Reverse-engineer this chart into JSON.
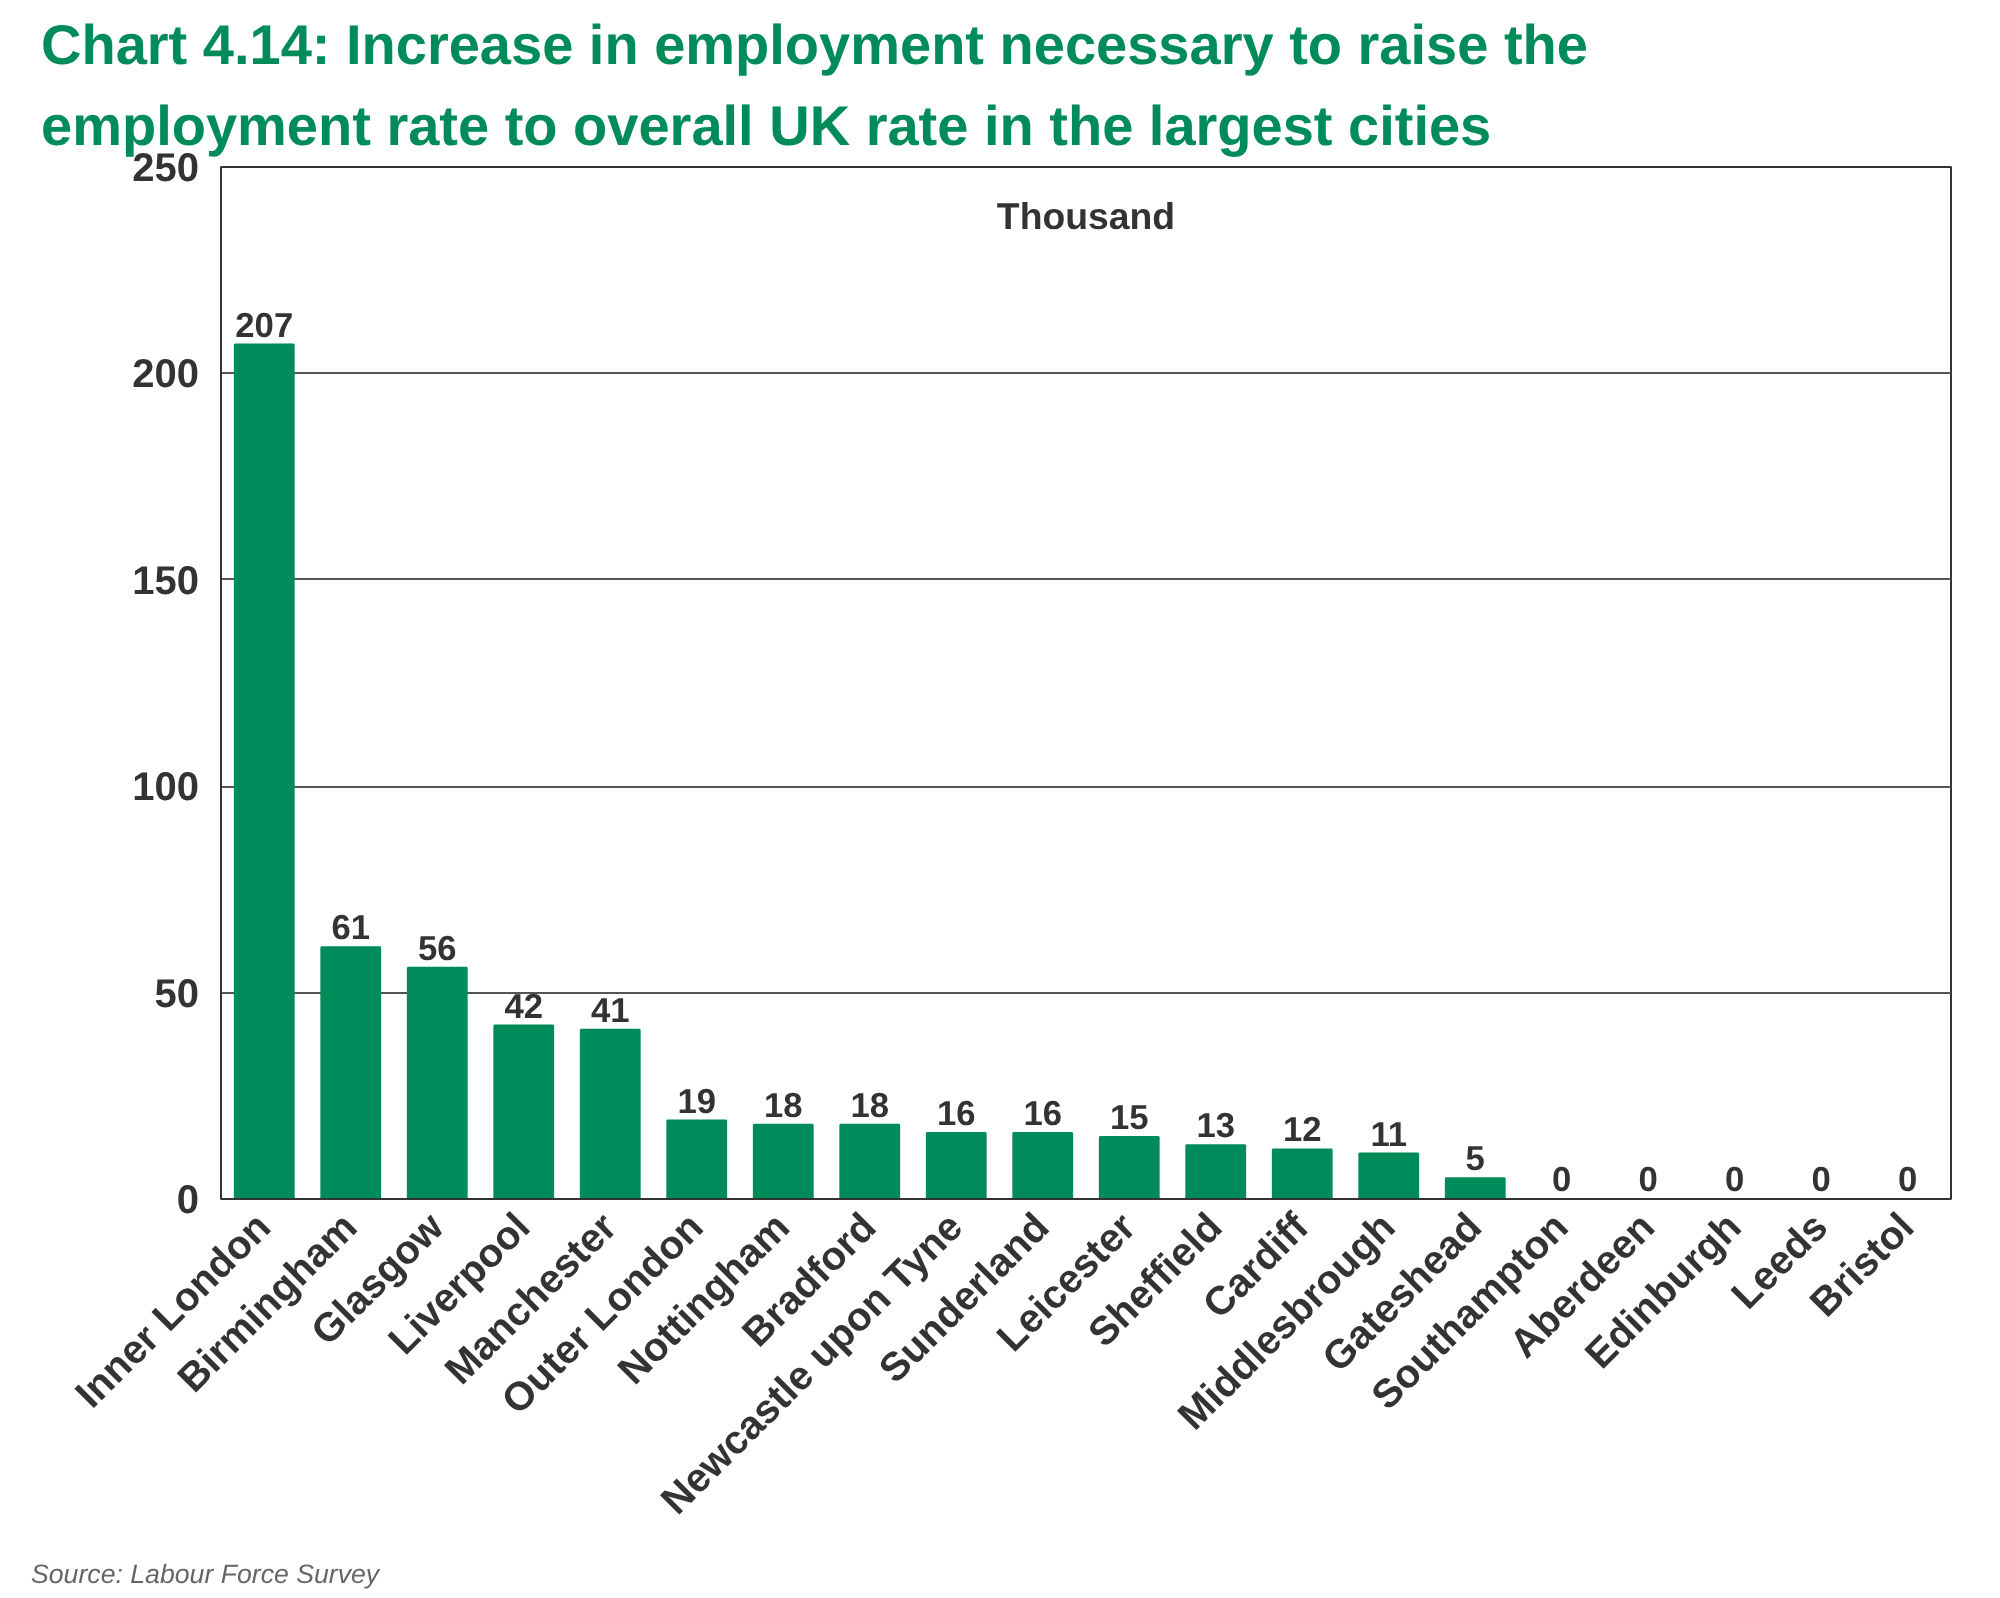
{
  "chart_data": {
    "type": "bar",
    "title": "Chart 4.14: Increase in employment necessary to raise the employment rate to overall UK rate in the largest cities",
    "categories": [
      "Inner London",
      "Birmingham",
      "Glasgow",
      "Liverpool",
      "Manchester",
      "Outer London",
      "Nottingham",
      "Bradford",
      "Newcastle upon Tyne",
      "Sunderland",
      "Leicester",
      "Sheffield",
      "Cardiff",
      "Middlesbrough",
      "Gateshead",
      "Southampton",
      "Aberdeen",
      "Edinburgh",
      "Leeds",
      "Bristol"
    ],
    "values": [
      207,
      61,
      56,
      42,
      41,
      19,
      18,
      18,
      16,
      16,
      15,
      13,
      12,
      11,
      5,
      0,
      0,
      0,
      0,
      0
    ],
    "color": "#008b5a",
    "ylim": [
      0,
      250
    ],
    "yticks": [
      0,
      50,
      100,
      150,
      200,
      250
    ],
    "grid": "y",
    "data_labels": true,
    "annotations": [
      "Thousand",
      "Source: Labour Force Survey"
    ]
  }
}
